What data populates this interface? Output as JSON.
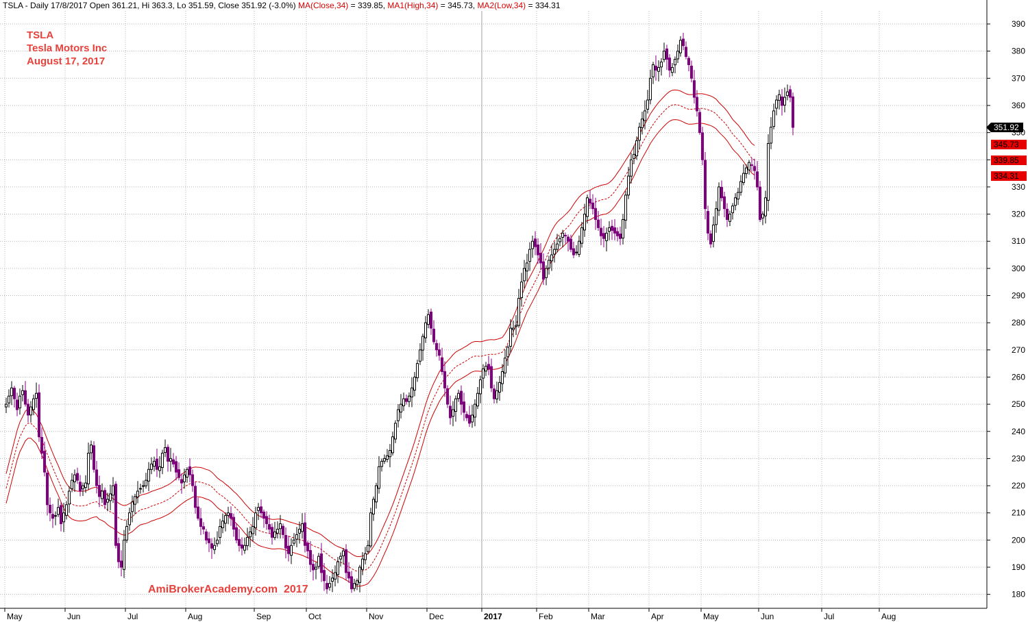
{
  "header": {
    "prefix": "TSLA - Daily 17/8/2017 Open 361.21, Hi 363.3, Lo 351.59, Close 351.92 (-3.0%)",
    "ma_label": "MA(Close,34)",
    "ma_value": " = 339.85, ",
    "ma1_label": "MA1(High,34)",
    "ma1_value": " = 345.73, ",
    "ma2_label": "MA2(Low,34)",
    "ma2_value": " = 334.31"
  },
  "info": {
    "symbol": "TSLA",
    "company": "Tesla Motors Inc",
    "date": "August 17, 2017"
  },
  "watermark": "AmiBrokerAcademy.com  2017",
  "colors": {
    "up": "#000000",
    "down": "#800080",
    "ma": "#cc0000",
    "grid": "#b4b4b4",
    "tag_red": "#e60000"
  },
  "chart_data": {
    "type": "candlestick",
    "ylim": [
      176,
      393
    ],
    "yticks": [
      180,
      190,
      200,
      210,
      220,
      230,
      240,
      250,
      260,
      270,
      280,
      290,
      300,
      310,
      320,
      330,
      340,
      350,
      360,
      370,
      380,
      390
    ],
    "xticks": [
      {
        "label": "May",
        "day": 0
      },
      {
        "label": "Jun",
        "day": 22
      },
      {
        "label": "Jul",
        "day": 44
      },
      {
        "label": "Aug",
        "day": 66
      },
      {
        "label": "Sep",
        "day": 91
      },
      {
        "label": "Oct",
        "day": 110
      },
      {
        "label": "Nov",
        "day": 132
      },
      {
        "label": "Dec",
        "day": 154
      },
      {
        "label": "2017",
        "day": 174,
        "bold": true
      },
      {
        "label": "Feb",
        "day": 194
      },
      {
        "label": "Mar",
        "day": 213
      },
      {
        "label": "Apr",
        "day": 235
      },
      {
        "label": "May",
        "day": 254
      },
      {
        "label": "Jun",
        "day": 275
      },
      {
        "label": "Jul",
        "day": 298
      },
      {
        "label": "Aug",
        "day": 319
      }
    ],
    "close": [
      250,
      253,
      256,
      252,
      248,
      253,
      255,
      250,
      246,
      249,
      252,
      254,
      238,
      232,
      225,
      213,
      210,
      208,
      209,
      212,
      206,
      210,
      213,
      218,
      222,
      224,
      222,
      218,
      220,
      221,
      232,
      235,
      226,
      220,
      216,
      218,
      213,
      215,
      217,
      220,
      198,
      192,
      190,
      200,
      205,
      210,
      214,
      216,
      218,
      219,
      220,
      222,
      226,
      228,
      229,
      226,
      227,
      232,
      234,
      229,
      230,
      228,
      225,
      223,
      221,
      224,
      226,
      224,
      220,
      212,
      208,
      205,
      204,
      200,
      199,
      197,
      198,
      200,
      205,
      207,
      209,
      210,
      208,
      204,
      200,
      198,
      197,
      198,
      201,
      203,
      205,
      210,
      212,
      210,
      208,
      206,
      204,
      201,
      203,
      204,
      206,
      202,
      197,
      195,
      198,
      200,
      202,
      204,
      206,
      198,
      196,
      191,
      189,
      190,
      194,
      188,
      185,
      182,
      184,
      186,
      188,
      192,
      194,
      196,
      188,
      186,
      182,
      184,
      185,
      190,
      193,
      195,
      198,
      210,
      215,
      220,
      227,
      229,
      230,
      231,
      233,
      238,
      243,
      248,
      250,
      252,
      251,
      253,
      256,
      260,
      265,
      270,
      275,
      280,
      283,
      278,
      273,
      270,
      268,
      262,
      256,
      250,
      245,
      248,
      252,
      254,
      250,
      247,
      245,
      243,
      246,
      250,
      254,
      259,
      263,
      264,
      263,
      256,
      252,
      255,
      258,
      262,
      267,
      271,
      278,
      278,
      279,
      289,
      295,
      300,
      302,
      307,
      310,
      308,
      305,
      302,
      296,
      300,
      303,
      305,
      307,
      309,
      311,
      313,
      312,
      310,
      307,
      305,
      306,
      310,
      315,
      320,
      326,
      324,
      322,
      318,
      315,
      312,
      311,
      313,
      315,
      314,
      313,
      312,
      311,
      318,
      327,
      334,
      340,
      342,
      347,
      352,
      355,
      358,
      362,
      370,
      375,
      373,
      374,
      376,
      380,
      377,
      373,
      374,
      377,
      380,
      384,
      382,
      378,
      375,
      370,
      363,
      358,
      350,
      340,
      322,
      313,
      309,
      316,
      322,
      330,
      326,
      322,
      318,
      320,
      323,
      326,
      328,
      332,
      335,
      337,
      339,
      338,
      336,
      330,
      318,
      320,
      326,
      346,
      352,
      358,
      362,
      364,
      360,
      363,
      365,
      363,
      351.92
    ],
    "ma_close": [
      219,
      223,
      227,
      231,
      235,
      238,
      240,
      242,
      243,
      243,
      242,
      241,
      238.9,
      236.8,
      234.3,
      231.6,
      229.1,
      226.6,
      224.2,
      222,
      219.5,
      217.2,
      215.4,
      214,
      213.2,
      212.8,
      212.6,
      212.5,
      212.6,
      212.7,
      213.1,
      213.6,
      213.9,
      214.1,
      213.1,
      212.7,
      212.1,
      211.1,
      210.4,
      209.9,
      209,
      208.2,
      207.6,
      207.3,
      207.5,
      208,
      208.6,
      209.5,
      210.4,
      211.1,
      211.4,
      211.6,
      212,
      212.5,
      212.8,
      213.2,
      213.5,
      213.9,
      214.4,
      214.9,
      215.5,
      216.3,
      217.2,
      218,
      218.8,
      219.5,
      220.2,
      220.7,
      221.3,
      221.5,
      221.4,
      221.3,
      221,
      220.6,
      220.3,
      219.6,
      218.6,
      217.5,
      216.7,
      216.1,
      215.2,
      214.4,
      213.5,
      212.5,
      211.6,
      210.5,
      209.4,
      208.1,
      207,
      205.9,
      205,
      204.3,
      203.6,
      203.2,
      202.9,
      202.6,
      202.4,
      202.2,
      202.2,
      202.3,
      202.3,
      202.1,
      201.8,
      201.4,
      201.1,
      200.8,
      200.5,
      200.2,
      199.9,
      199.4,
      199,
      198.5,
      197.9,
      197.5,
      197.1,
      196.5,
      195.7,
      194.9,
      194.1,
      193.4,
      192.7,
      192.2,
      191.8,
      191.4,
      190.7,
      190.2,
      189.5,
      188.9,
      188.5,
      188.5,
      188.7,
      189,
      189.5,
      190.7,
      192.2,
      193.9,
      195.9,
      198.2,
      200.5,
      202.7,
      205.1,
      207.6,
      210.3,
      213.2,
      216.1,
      219,
      221.9,
      224.8,
      227.7,
      230.8,
      234.2,
      237.6,
      241,
      244.5,
      247.5,
      250.1,
      252.4,
      254.4,
      256.5,
      258.1,
      259.4,
      260.5,
      261.6,
      262.8,
      263.8,
      264.4,
      264.9,
      265.5,
      266.1,
      266.8,
      267.4,
      267.7,
      267.7,
      267.6,
      267.8,
      268.1,
      268.3,
      268.4,
      268.3,
      268.5,
      268.8,
      269.2,
      270.6,
      272.4,
      274.5,
      276.6,
      279.1,
      281.9,
      284.5,
      287,
      289.5,
      291.4,
      293.3,
      295.3,
      297.2,
      299.4,
      301.5,
      303.8,
      306.2,
      308.4,
      310.2,
      311.6,
      312.6,
      313.4,
      314.4,
      315.4,
      316.6,
      318.2,
      319.6,
      320.9,
      321.9,
      322.6,
      323.1,
      323.4,
      324,
      324.5,
      324.8,
      325.2,
      325.4,
      325.6,
      326.2,
      327.1,
      328.3,
      329.8,
      331.2,
      332.8,
      334.4,
      336,
      337.6,
      339.5,
      341.7,
      343.9,
      346,
      347.8,
      349.6,
      351.5,
      353,
      354.4,
      355.7,
      356.8,
      357.9,
      358.9,
      359.7,
      360.2,
      360.3,
      360.2,
      359.9,
      359.4,
      358.9,
      358.6,
      358.6,
      358.7,
      358.9,
      358.9,
      358.9,
      358.7,
      358.4,
      358.1,
      357.6,
      356.9,
      355.7,
      354.7,
      353.7,
      352.5,
      351,
      349.5,
      348.4,
      347.4,
      346.1,
      344.8,
      343.3,
      341.9,
      340.6,
      339.85
    ]
  }
}
